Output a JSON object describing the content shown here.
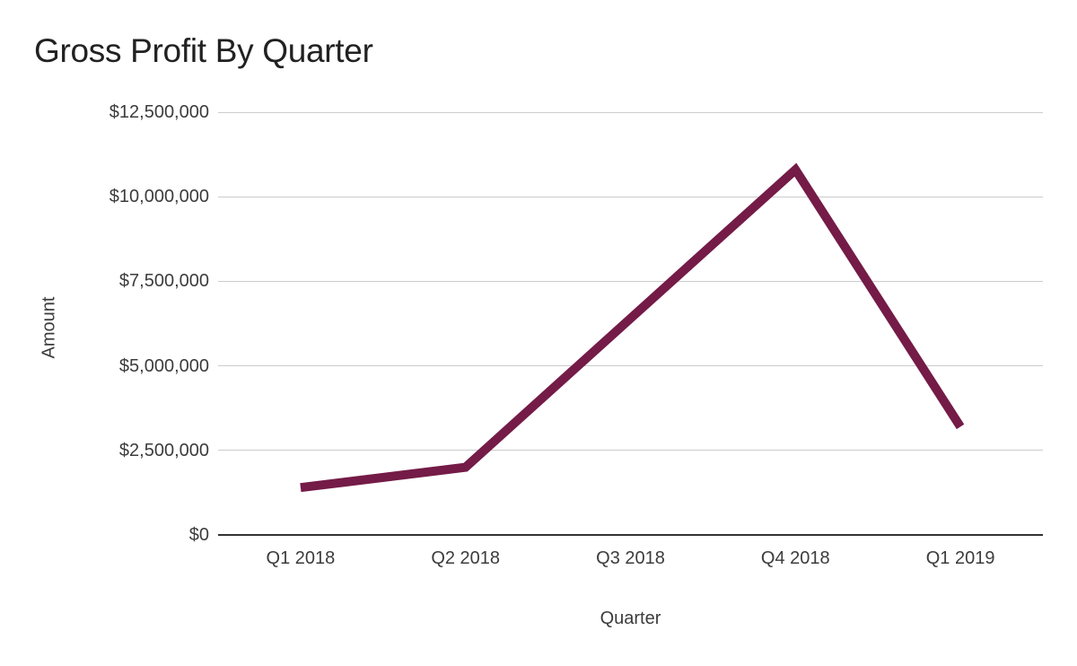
{
  "title": "Gross Profit By Quarter",
  "chart_data": {
    "type": "line",
    "title": "Gross Profit By Quarter",
    "xlabel": "Quarter",
    "ylabel": "Amount",
    "categories": [
      "Q1 2018",
      "Q2 2018",
      "Q3 2018",
      "Q4 2018",
      "Q1 2019"
    ],
    "values": [
      1400000,
      2000000,
      6400000,
      10800000,
      3200000
    ],
    "ylim": [
      0,
      12500000
    ],
    "y_ticks": [
      {
        "value": 0,
        "label": "$0"
      },
      {
        "value": 2500000,
        "label": "$2,500,000"
      },
      {
        "value": 5000000,
        "label": "$5,000,000"
      },
      {
        "value": 7500000,
        "label": "$7,500,000"
      },
      {
        "value": 10000000,
        "label": "$10,000,000"
      },
      {
        "value": 12500000,
        "label": "$12,500,000"
      }
    ],
    "grid": true,
    "legend": "none",
    "line_color": "#741b47",
    "line_width": 10,
    "gridline_color": "#cccccc",
    "axis_line_color": "#333333",
    "background": "#ffffff"
  }
}
